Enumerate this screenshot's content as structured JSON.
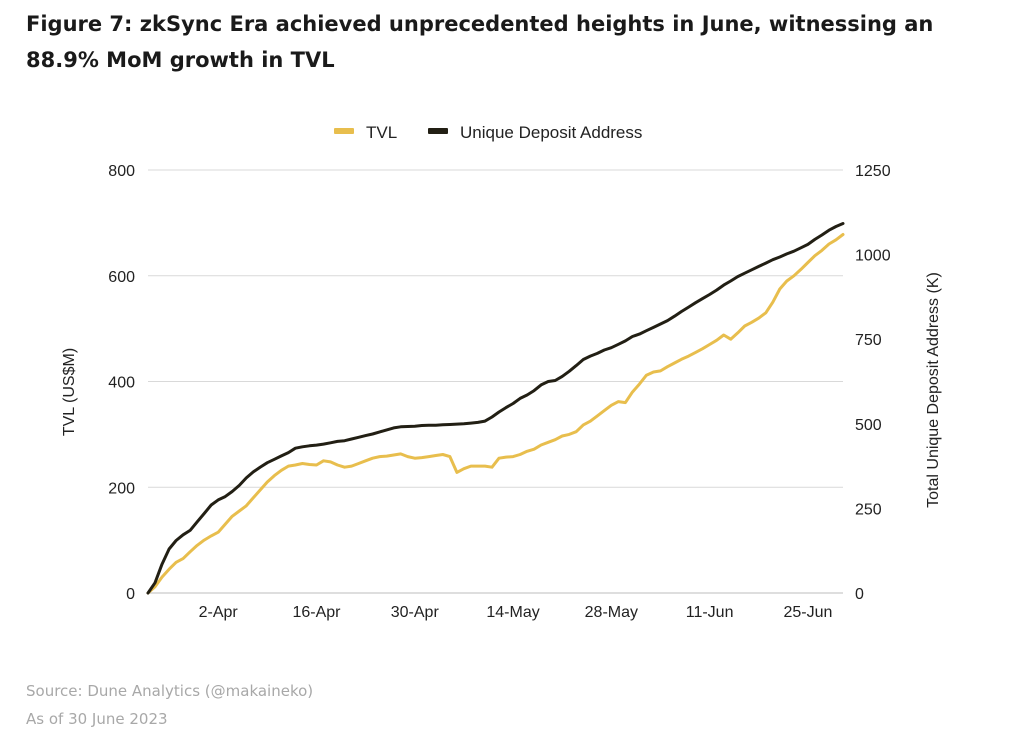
{
  "figure": {
    "title": "Figure 7: zkSync Era achieved unprecedented heights in June, witnessing an 88.9% MoM growth in TVL",
    "source": "Source: Dune Analytics (@makaineko)",
    "as_of": "As of 30 June 2023"
  },
  "colors": {
    "tvl": "#E8BE4D",
    "uda": "#221F14",
    "grid": "#d9d9d9",
    "axis_text": "#222222"
  },
  "chart_data": {
    "type": "line",
    "title": "Figure 7: zkSync Era achieved unprecedented heights in June, witnessing an 88.9% MoM growth in TVL",
    "xlabel": "",
    "ylabel": "TVL (US$M)",
    "y2label": "Total Unique Deposit Address (K)",
    "ylim": [
      0,
      800
    ],
    "y2lim": [
      0,
      1250
    ],
    "yticks": [
      0,
      200,
      400,
      600,
      800
    ],
    "y2ticks": [
      0,
      250,
      500,
      750,
      1000,
      1250
    ],
    "xlim": [
      0,
      99
    ],
    "xticks": [
      {
        "x": 10,
        "label": "2-Apr"
      },
      {
        "x": 24,
        "label": "16-Apr"
      },
      {
        "x": 38,
        "label": "30-Apr"
      },
      {
        "x": 52,
        "label": "14-May"
      },
      {
        "x": 66,
        "label": "28-May"
      },
      {
        "x": 80,
        "label": "11-Jun"
      },
      {
        "x": 94,
        "label": "25-Jun"
      }
    ],
    "grid": "horizontal",
    "legend_position": "top",
    "series": [
      {
        "name": "TVL",
        "axis": "left",
        "color": "#E8BE4D",
        "points": [
          [
            0,
            0
          ],
          [
            1,
            12
          ],
          [
            2,
            30
          ],
          [
            3,
            45
          ],
          [
            4,
            58
          ],
          [
            5,
            65
          ],
          [
            6,
            78
          ],
          [
            7,
            90
          ],
          [
            8,
            100
          ],
          [
            9,
            108
          ],
          [
            10,
            115
          ],
          [
            11,
            130
          ],
          [
            12,
            145
          ],
          [
            13,
            155
          ],
          [
            14,
            165
          ],
          [
            15,
            180
          ],
          [
            16,
            195
          ],
          [
            17,
            210
          ],
          [
            18,
            222
          ],
          [
            19,
            232
          ],
          [
            20,
            240
          ],
          [
            21,
            242
          ],
          [
            22,
            245
          ],
          [
            23,
            243
          ],
          [
            24,
            242
          ],
          [
            25,
            250
          ],
          [
            26,
            248
          ],
          [
            27,
            242
          ],
          [
            28,
            238
          ],
          [
            29,
            240
          ],
          [
            30,
            245
          ],
          [
            31,
            250
          ],
          [
            32,
            255
          ],
          [
            33,
            258
          ],
          [
            34,
            259
          ],
          [
            35,
            261
          ],
          [
            36,
            263
          ],
          [
            37,
            258
          ],
          [
            38,
            255
          ],
          [
            39,
            256
          ],
          [
            40,
            258
          ],
          [
            41,
            260
          ],
          [
            42,
            262
          ],
          [
            43,
            258
          ],
          [
            44,
            228
          ],
          [
            45,
            235
          ],
          [
            46,
            240
          ],
          [
            47,
            240
          ],
          [
            48,
            240
          ],
          [
            49,
            238
          ],
          [
            50,
            255
          ],
          [
            51,
            257
          ],
          [
            52,
            258
          ],
          [
            53,
            262
          ],
          [
            54,
            268
          ],
          [
            55,
            272
          ],
          [
            56,
            280
          ],
          [
            57,
            285
          ],
          [
            58,
            290
          ],
          [
            59,
            297
          ],
          [
            60,
            300
          ],
          [
            61,
            305
          ],
          [
            62,
            318
          ],
          [
            63,
            325
          ],
          [
            64,
            335
          ],
          [
            65,
            345
          ],
          [
            66,
            355
          ],
          [
            67,
            362
          ],
          [
            68,
            360
          ],
          [
            69,
            380
          ],
          [
            70,
            395
          ],
          [
            71,
            412
          ],
          [
            72,
            418
          ],
          [
            73,
            420
          ],
          [
            74,
            428
          ],
          [
            75,
            435
          ],
          [
            76,
            442
          ],
          [
            77,
            448
          ],
          [
            78,
            455
          ],
          [
            79,
            462
          ],
          [
            80,
            470
          ],
          [
            81,
            478
          ],
          [
            82,
            488
          ],
          [
            83,
            480
          ],
          [
            84,
            492
          ],
          [
            85,
            505
          ],
          [
            86,
            512
          ],
          [
            87,
            520
          ],
          [
            88,
            530
          ],
          [
            89,
            550
          ],
          [
            90,
            575
          ],
          [
            91,
            590
          ],
          [
            92,
            600
          ],
          [
            93,
            612
          ],
          [
            94,
            625
          ],
          [
            95,
            638
          ],
          [
            96,
            648
          ],
          [
            97,
            660
          ],
          [
            98,
            668
          ],
          [
            99,
            678
          ]
        ]
      },
      {
        "name": "Unique Deposit Address",
        "axis": "right",
        "color": "#221F14",
        "points": [
          [
            0,
            0
          ],
          [
            1,
            30
          ],
          [
            2,
            85
          ],
          [
            3,
            130
          ],
          [
            4,
            155
          ],
          [
            5,
            172
          ],
          [
            6,
            185
          ],
          [
            7,
            210
          ],
          [
            8,
            235
          ],
          [
            9,
            260
          ],
          [
            10,
            275
          ],
          [
            11,
            285
          ],
          [
            12,
            300
          ],
          [
            13,
            318
          ],
          [
            14,
            340
          ],
          [
            15,
            358
          ],
          [
            16,
            372
          ],
          [
            17,
            385
          ],
          [
            18,
            395
          ],
          [
            19,
            405
          ],
          [
            20,
            415
          ],
          [
            21,
            428
          ],
          [
            22,
            432
          ],
          [
            23,
            435
          ],
          [
            24,
            437
          ],
          [
            25,
            440
          ],
          [
            26,
            444
          ],
          [
            27,
            448
          ],
          [
            28,
            450
          ],
          [
            29,
            455
          ],
          [
            30,
            460
          ],
          [
            31,
            465
          ],
          [
            32,
            470
          ],
          [
            33,
            476
          ],
          [
            34,
            482
          ],
          [
            35,
            488
          ],
          [
            36,
            491
          ],
          [
            37,
            492
          ],
          [
            38,
            493
          ],
          [
            39,
            495
          ],
          [
            40,
            496
          ],
          [
            41,
            496
          ],
          [
            42,
            497
          ],
          [
            43,
            498
          ],
          [
            44,
            499
          ],
          [
            45,
            500
          ],
          [
            46,
            502
          ],
          [
            47,
            504
          ],
          [
            48,
            508
          ],
          [
            49,
            520
          ],
          [
            50,
            535
          ],
          [
            51,
            548
          ],
          [
            52,
            560
          ],
          [
            53,
            575
          ],
          [
            54,
            585
          ],
          [
            55,
            598
          ],
          [
            56,
            615
          ],
          [
            57,
            625
          ],
          [
            58,
            628
          ],
          [
            59,
            640
          ],
          [
            60,
            655
          ],
          [
            61,
            672
          ],
          [
            62,
            690
          ],
          [
            63,
            700
          ],
          [
            64,
            708
          ],
          [
            65,
            718
          ],
          [
            66,
            725
          ],
          [
            67,
            735
          ],
          [
            68,
            745
          ],
          [
            69,
            758
          ],
          [
            70,
            765
          ],
          [
            71,
            775
          ],
          [
            72,
            785
          ],
          [
            73,
            795
          ],
          [
            74,
            805
          ],
          [
            75,
            818
          ],
          [
            76,
            832
          ],
          [
            77,
            845
          ],
          [
            78,
            858
          ],
          [
            79,
            870
          ],
          [
            80,
            882
          ],
          [
            81,
            895
          ],
          [
            82,
            910
          ],
          [
            83,
            922
          ],
          [
            84,
            935
          ],
          [
            85,
            945
          ],
          [
            86,
            955
          ],
          [
            87,
            965
          ],
          [
            88,
            975
          ],
          [
            89,
            985
          ],
          [
            90,
            993
          ],
          [
            91,
            1002
          ],
          [
            92,
            1010
          ],
          [
            93,
            1020
          ],
          [
            94,
            1030
          ],
          [
            95,
            1045
          ],
          [
            96,
            1058
          ],
          [
            97,
            1072
          ],
          [
            98,
            1083
          ],
          [
            99,
            1092
          ]
        ]
      }
    ]
  }
}
